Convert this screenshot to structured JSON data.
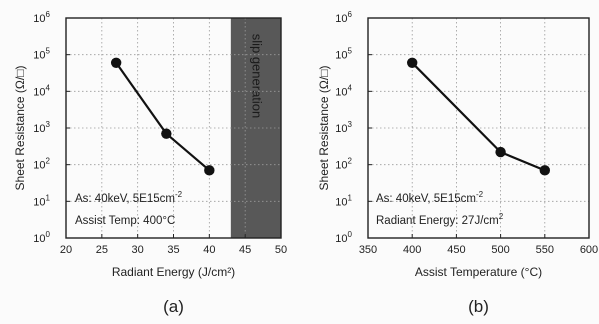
{
  "chart_data": [
    {
      "type": "line",
      "panel_label": "(a)",
      "xlabel": "Radiant Energy (J/cm²)",
      "ylabel": "Sheet Resistance (Ω/□)",
      "xlim": [
        20,
        50
      ],
      "ylim": [
        1,
        1000000
      ],
      "y_scale": "log",
      "grid": true,
      "x_ticks": [
        20,
        25,
        30,
        35,
        40,
        45,
        50
      ],
      "x_tick_labels": [
        "20",
        "25",
        "30",
        "35",
        "40",
        "45",
        "50"
      ],
      "y_ticks": [
        1,
        10,
        100,
        1000,
        10000,
        100000,
        1000000
      ],
      "y_tick_labels": [
        {
          "base": "10",
          "exp": "0"
        },
        {
          "base": "10",
          "exp": "1"
        },
        {
          "base": "10",
          "exp": "2"
        },
        {
          "base": "10",
          "exp": "3"
        },
        {
          "base": "10",
          "exp": "4"
        },
        {
          "base": "10",
          "exp": "5"
        },
        {
          "base": "10",
          "exp": "6"
        }
      ],
      "series": [
        {
          "x": [
            27,
            34,
            40
          ],
          "y": [
            60000,
            700,
            70
          ]
        }
      ],
      "shaded_region": {
        "x": [
          43,
          50
        ],
        "label": "slip generation",
        "color": "#585858"
      },
      "annotations": [
        {
          "text": "As: 40keV, 5E15cm",
          "sup": "-2"
        },
        {
          "text": "Assist Temp: 400°C",
          "sup": ""
        }
      ]
    },
    {
      "type": "line",
      "panel_label": "(b)",
      "xlabel": "Assist Temperature (°C)",
      "ylabel": "Sheet Resistance (Ω/□)",
      "xlim": [
        350,
        600
      ],
      "ylim": [
        1,
        1000000
      ],
      "y_scale": "log",
      "grid": true,
      "x_ticks": [
        350,
        400,
        450,
        500,
        550,
        600
      ],
      "x_tick_labels": [
        "350",
        "400",
        "450",
        "500",
        "550",
        "600"
      ],
      "y_ticks": [
        1,
        10,
        100,
        1000,
        10000,
        100000,
        1000000
      ],
      "y_tick_labels": [
        {
          "base": "10",
          "exp": "0"
        },
        {
          "base": "10",
          "exp": "1"
        },
        {
          "base": "10",
          "exp": "2"
        },
        {
          "base": "10",
          "exp": "3"
        },
        {
          "base": "10",
          "exp": "4"
        },
        {
          "base": "10",
          "exp": "5"
        },
        {
          "base": "10",
          "exp": "6"
        }
      ],
      "series": [
        {
          "x": [
            400,
            500,
            550
          ],
          "y": [
            60000,
            220,
            70
          ]
        }
      ],
      "shaded_region": null,
      "annotations": [
        {
          "text": "As: 40keV, 5E15cm",
          "sup": "-2"
        },
        {
          "text": "Radiant Energy: 27J/cm",
          "sup": "2"
        }
      ]
    }
  ]
}
